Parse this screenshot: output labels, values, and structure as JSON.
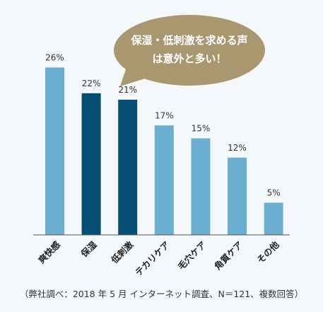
{
  "chart_data": {
    "type": "bar",
    "categories": [
      "爽快感",
      "保湿",
      "低刺激",
      "テカリケア",
      "毛穴ケア",
      "角質ケア",
      "その他"
    ],
    "values": [
      26,
      22,
      21,
      17,
      15,
      12,
      5
    ],
    "value_labels": [
      "26%",
      "22%",
      "21%",
      "17%",
      "15%",
      "12%",
      "5%"
    ],
    "highlighted": [
      "保湿",
      "低刺激"
    ],
    "ylim": [
      0,
      30
    ],
    "grid": false,
    "colors": {
      "normal": "#6aafcf",
      "highlight": "#064d74",
      "axis": "#555555"
    }
  },
  "callout": {
    "line1": "保湿・低刺激を求める声",
    "line2": "は意外と多い！",
    "color": "#a99770"
  },
  "footnote": "（弊社調べ：2018 年 5 月 インターネット調査、N＝121、複数回答）"
}
